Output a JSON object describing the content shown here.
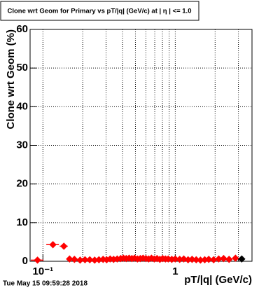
{
  "chart_data": {
    "type": "scatter",
    "title": "Clone wrt Geom for Primary vs pT/|q| (GeV/c) at | η | <= 1.0",
    "x_label": "pT/|q| (GeV/c)",
    "y_label": "Clone wrt Geom (%)",
    "timestamp": "Tue May 15 09:59:28 2018",
    "xscale": "log",
    "grid": true,
    "xlim": [
      0.08,
      3.8
    ],
    "ylim": [
      0,
      60
    ],
    "xticks": [
      {
        "value": 0.1,
        "label": "10⁻¹"
      },
      1
    ],
    "xminor": [
      0.2,
      0.3,
      0.4,
      0.5,
      0.6,
      0.7,
      0.8,
      0.9,
      2,
      3
    ],
    "yticks": [
      0,
      10,
      20,
      30,
      40,
      50,
      60
    ],
    "series": [
      {
        "color": "#ff0000",
        "x": [
          0.091,
          0.119,
          0.144,
          0.159,
          0.173,
          0.191,
          0.208,
          0.226,
          0.246,
          0.265,
          0.285,
          0.303,
          0.322,
          0.342,
          0.364,
          0.387,
          0.406,
          0.426,
          0.448,
          0.47,
          0.493,
          0.518,
          0.544,
          0.571,
          0.6,
          0.63,
          0.661,
          0.694,
          0.728,
          0.765,
          0.803,
          0.843,
          0.885,
          0.941,
          1.0,
          1.08,
          1.16,
          1.25,
          1.34,
          1.44,
          1.55,
          1.67,
          1.79,
          1.95,
          2.13,
          2.32,
          2.55,
          2.85
        ],
        "values": [
          0.3,
          4.3,
          3.9,
          0.6,
          0.5,
          0.3,
          0.4,
          0.4,
          0.3,
          0.4,
          0.5,
          0.4,
          0.6,
          0.5,
          0.6,
          0.7,
          0.8,
          0.7,
          0.8,
          0.7,
          0.8,
          0.6,
          0.7,
          0.8,
          0.7,
          0.6,
          0.8,
          0.6,
          0.7,
          0.5,
          0.7,
          0.6,
          0.6,
          0.5,
          0.6,
          0.5,
          0.6,
          0.4,
          0.5,
          0.4,
          0.3,
          0.4,
          0.5,
          0.4,
          0.6,
          0.7,
          0.5,
          0.8
        ],
        "xerr": [
          0.01,
          0.013,
          0.01,
          0,
          0,
          0,
          0,
          0,
          0,
          0,
          0,
          0,
          0,
          0,
          0,
          0,
          0,
          0,
          0,
          0,
          0,
          0,
          0,
          0,
          0,
          0,
          0,
          0,
          0,
          0,
          0,
          0,
          0,
          0,
          0,
          0,
          0,
          0,
          0,
          0,
          0,
          0,
          0,
          0,
          0,
          0,
          0,
          0
        ]
      },
      {
        "color": "#000000",
        "x": [
          3.18
        ],
        "values": [
          0.6
        ],
        "xerr": [
          0
        ]
      }
    ]
  }
}
